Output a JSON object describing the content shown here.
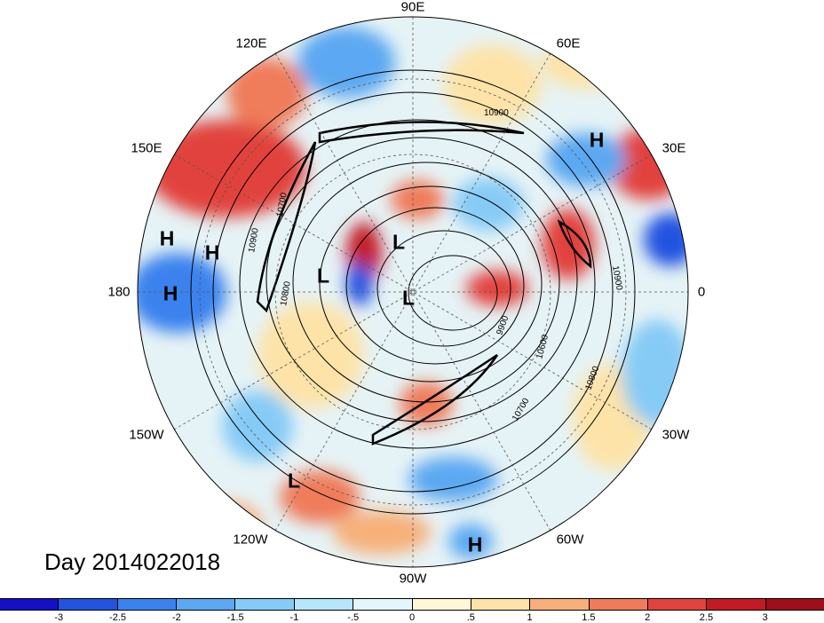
{
  "title": "Day 2014022018",
  "longitude_labels": {
    "lon_90e": "90E",
    "lon_120e": "120E",
    "lon_60e": "60E",
    "lon_150e": "150E",
    "lon_30e": "30E",
    "lon_180": "180",
    "lon_0": "0",
    "lon_150w": "150W",
    "lon_30w": "30W",
    "lon_120w": "120W",
    "lon_60w": "60W",
    "lon_90w": "90W"
  },
  "pressure_centers": {
    "h_30e": "H",
    "h_west1": "H",
    "h_west2": "H",
    "h_180": "H",
    "h_south": "H",
    "l_center1": "L",
    "l_center2": "L",
    "l_center3": "L",
    "l_south": "L"
  },
  "contour_labels": {
    "c1": "10900",
    "c2": "10900",
    "c3": "10900",
    "c4": "10700",
    "c5": "10800",
    "c6": "10600",
    "c7": "9900",
    "c8": "10700",
    "c9": "10800"
  },
  "colorbar": {
    "ticks": [
      "-3",
      "-2.5",
      "-2",
      "-1.5",
      "-1",
      "-.5",
      "0",
      ".5",
      "1",
      "1.5",
      "2",
      "2.5",
      "3"
    ],
    "colors": [
      "#1410c8",
      "#2353e0",
      "#3b82ee",
      "#5ca8f2",
      "#86cbf6",
      "#b5e6fa",
      "#e2f6fb",
      "#fff7d6",
      "#fde3a8",
      "#f7b07a",
      "#ef7b5a",
      "#e2433d",
      "#c41a26",
      "#a00d1c"
    ]
  },
  "colors": {
    "disk_base": "#e8f4f8",
    "warm": "#ef7b5a",
    "cold": "#3b82ee",
    "contour": "#000000",
    "graticule": "#555555"
  }
}
